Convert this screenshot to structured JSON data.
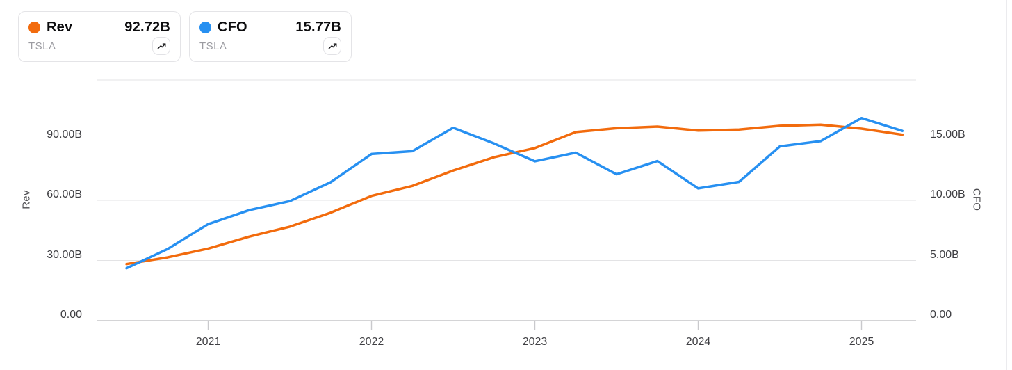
{
  "legend_cards": [
    {
      "name": "Rev",
      "value": "92.72B",
      "ticker": "TSLA",
      "color": "#f26b0d",
      "icon": "trending-up-icon"
    },
    {
      "name": "CFO",
      "value": "15.77B",
      "ticker": "TSLA",
      "color": "#2790f1",
      "icon": "trending-up-icon"
    }
  ],
  "chart_data": {
    "type": "line",
    "title": "",
    "x": [
      "2020 Q3",
      "2020 Q4",
      "2021 Q1",
      "2021 Q2",
      "2021 Q3",
      "2021 Q4",
      "2022 Q1",
      "2022 Q2",
      "2022 Q3",
      "2022 Q4",
      "2023 Q1",
      "2023 Q2",
      "2023 Q3",
      "2023 Q4",
      "2024 Q1",
      "2024 Q2",
      "2024 Q3",
      "2024 Q4",
      "2025 Q1",
      "2025 Q2"
    ],
    "x_tick_labels": [
      "2021",
      "2022",
      "2023",
      "2024",
      "2025"
    ],
    "x_tick_indices": [
      2,
      6,
      10,
      14,
      18
    ],
    "series": [
      {
        "name": "Rev",
        "ticker": "TSLA",
        "axis": "left",
        "color": "#f26b0d",
        "current": "92.72B",
        "values_billions": [
          28.18,
          31.54,
          35.94,
          41.86,
          46.85,
          53.82,
          62.19,
          67.17,
          74.86,
          81.46,
          86.04,
          94.03,
          95.92,
          96.77,
          94.75,
          95.32,
          97.15,
          97.69,
          95.72,
          92.72
        ]
      },
      {
        "name": "CFO",
        "ticker": "TSLA",
        "axis": "right",
        "color": "#2790f1",
        "current": "15.77B",
        "values_billions": [
          4.35,
          5.94,
          8.02,
          9.18,
          9.93,
          11.5,
          13.85,
          14.08,
          16.03,
          14.72,
          13.24,
          13.96,
          12.16,
          13.26,
          10.99,
          11.53,
          14.48,
          14.92,
          16.84,
          15.77
        ]
      }
    ],
    "y_left": {
      "title": "Rev",
      "ticks_bottom_up": [
        "0.00",
        "30.00B",
        "60.00B",
        "90.00B"
      ],
      "range_billions": [
        0,
        120
      ]
    },
    "y_right": {
      "title": "CFO",
      "ticks_bottom_up": [
        "0.00",
        "5.00B",
        "10.00B",
        "15.00B"
      ],
      "range_billions": [
        0,
        20
      ]
    },
    "grid": true,
    "legend_position": "top-left",
    "colors": {
      "gridline": "#e3e3e5",
      "axis_line": "#c6c6c9",
      "tick_mark": "#c9c9cc"
    }
  }
}
